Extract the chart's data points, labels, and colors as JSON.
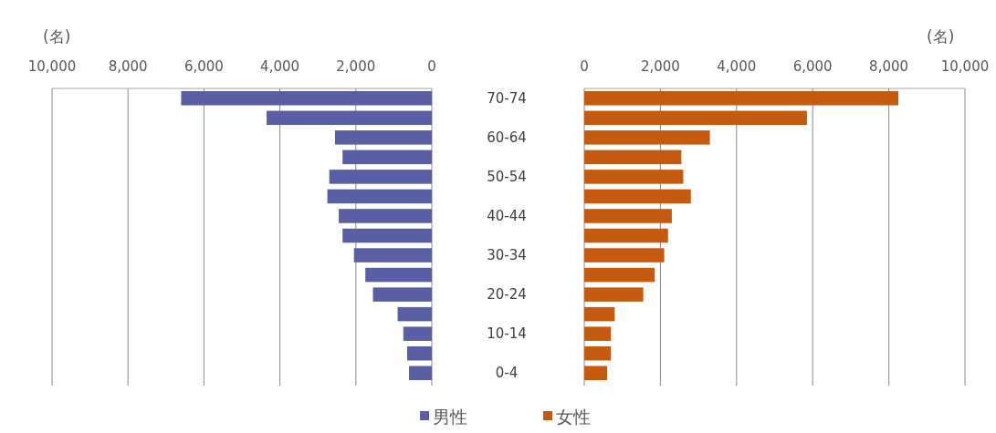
{
  "chart_data": [
    {
      "type": "bar",
      "orientation": "horizontal",
      "xlabel": "(名)",
      "categories": [
        null,
        null,
        null,
        null,
        null,
        null,
        null,
        null,
        null,
        null,
        null,
        null,
        null,
        null,
        null
      ],
      "series": [
        {
          "name": "男性",
          "color": "#5a5ea3",
          "values": [
            6600,
            4350,
            2550,
            2350,
            2700,
            2750,
            2450,
            2350,
            2050,
            1750,
            1550,
            900,
            750,
            650,
            600
          ]
        }
      ],
      "xlim": [
        10000,
        0
      ],
      "xticks": [
        {
          "value": 10000,
          "label": "10,000"
        },
        {
          "value": 8000,
          "label": "8,000"
        },
        {
          "value": 6000,
          "label": "6,000"
        },
        {
          "value": 4000,
          "label": "4,000"
        },
        {
          "value": 2000,
          "label": "2,000"
        },
        0
      ],
      "grid": "x",
      "legend": "bottom",
      "tick_labels": "x"
    },
    {
      "type": "bar",
      "orientation": "horizontal",
      "xlabel": "(名)",
      "categories": [
        "70-74",
        null,
        "60-64",
        null,
        "50-54",
        null,
        "40-44",
        null,
        "30-34",
        null,
        "20-24",
        null,
        "10-14",
        null,
        "0-4"
      ],
      "series": [
        {
          "name": "女性",
          "color": "#c55a11",
          "values": [
            8250,
            5850,
            3300,
            2550,
            2600,
            2800,
            2300,
            2200,
            2100,
            1850,
            1550,
            800,
            700,
            700,
            600
          ]
        }
      ],
      "xlim": [
        0,
        10000
      ],
      "xticks": [
        0,
        {
          "value": 2000,
          "label": "2,000"
        },
        {
          "value": 4000,
          "label": "4,000"
        },
        {
          "value": 6000,
          "label": "6,000"
        },
        {
          "value": 8000,
          "label": "8,000"
        },
        {
          "value": 10000,
          "label": "10,000"
        }
      ],
      "grid": "x",
      "legend": "bottom"
    }
  ]
}
